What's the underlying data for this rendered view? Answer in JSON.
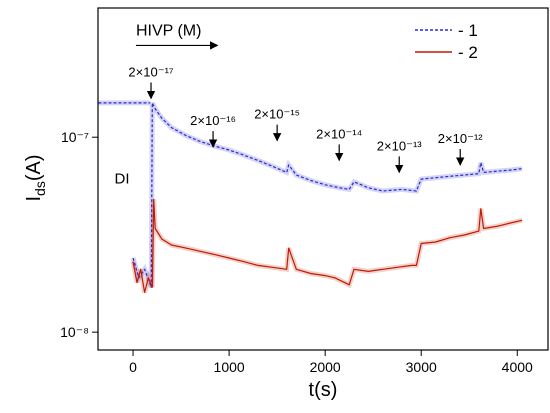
{
  "chart_data": {
    "type": "line",
    "xlabel": "t(s)",
    "ylabel": {
      "main": "I",
      "sub": "ds",
      "unit": "(A)"
    },
    "xlim": [
      -365,
      4320
    ],
    "ylim": [
      8.1e-09,
      4.6e-07
    ],
    "log_y": true,
    "xticks": [
      0,
      1000,
      2000,
      3000,
      4000
    ],
    "yticks": [
      {
        "value": 1e-08,
        "label": "10⁻⁸"
      },
      {
        "value": 1e-07,
        "label": "10⁻⁷"
      }
    ],
    "legend": "upper right",
    "series": [
      {
        "name": "- 1",
        "color": "#2a2ad0",
        "dash": true,
        "x": [
          -360,
          180,
          185,
          0,
          60,
          120,
          190,
          200,
          230,
          300,
          400,
          550,
          700,
          850,
          1000,
          1150,
          1300,
          1450,
          1600,
          1620,
          1700,
          1850,
          2000,
          2150,
          2250,
          2300,
          2450,
          2600,
          2800,
          2950,
          3000,
          3150,
          3300,
          3450,
          3600,
          3620,
          3650,
          3800,
          3950,
          4050
        ],
        "values": [
          1.5e-07,
          1.5e-07,
          null,
          2.4e-08,
          1.9e-08,
          2.1e-08,
          1.7e-08,
          1.5e-07,
          1.4e-07,
          1.25e-07,
          1.12e-07,
          1.02e-07,
          9.5e-08,
          9e-08,
          8.6e-08,
          8.1e-08,
          7.6e-08,
          7.1e-08,
          6.6e-08,
          7.2e-08,
          6.4e-08,
          6e-08,
          5.7e-08,
          5.5e-08,
          5.4e-08,
          5.9e-08,
          5.5e-08,
          5.3e-08,
          5.4e-08,
          5.3e-08,
          6.1e-08,
          6.2e-08,
          6.3e-08,
          6.4e-08,
          6.5e-08,
          7.4e-08,
          6.6e-08,
          6.7e-08,
          6.8e-08,
          6.9e-08
        ]
      },
      {
        "name": "- 2",
        "color": "#c01a00",
        "dash": false,
        "x": [
          0,
          40,
          80,
          120,
          160,
          200,
          215,
          230,
          300,
          400,
          550,
          700,
          850,
          1000,
          1150,
          1300,
          1450,
          1600,
          1620,
          1700,
          1850,
          2000,
          2100,
          2200,
          2250,
          2300,
          2450,
          2600,
          2750,
          2900,
          2950,
          3000,
          3150,
          3300,
          3450,
          3600,
          3620,
          3650,
          3800,
          3950,
          4050
        ],
        "values": [
          2.3e-08,
          1.8e-08,
          2.1e-08,
          1.6e-08,
          1.9e-08,
          1.7e-08,
          4.8e-08,
          3.4e-08,
          3e-08,
          2.8e-08,
          2.7e-08,
          2.6e-08,
          2.5e-08,
          2.4e-08,
          2.3e-08,
          2.2e-08,
          2.15e-08,
          2.1e-08,
          2.7e-08,
          2.1e-08,
          2e-08,
          1.95e-08,
          1.9e-08,
          1.8e-08,
          1.75e-08,
          2.1e-08,
          2.05e-08,
          2.1e-08,
          2.15e-08,
          2.2e-08,
          2.2e-08,
          2.85e-08,
          2.9e-08,
          3.05e-08,
          3.15e-08,
          3.3e-08,
          4.3e-08,
          3.4e-08,
          3.5e-08,
          3.65e-08,
          3.75e-08
        ]
      }
    ],
    "annotations": [
      {
        "text": "HIVP (M)",
        "x": 30,
        "y": 3.1e-07,
        "x2": 880
      },
      {
        "text": "2×10⁻¹⁷",
        "x": 187,
        "y": 1.58e-07
      },
      {
        "text": "2×10⁻¹⁶",
        "x": 833,
        "y": 8.9e-08
      },
      {
        "text": "2×10⁻¹⁵",
        "x": 1500,
        "y": 9.6e-08
      },
      {
        "text": "2×10⁻¹⁴",
        "x": 2146,
        "y": 7.6e-08
      },
      {
        "text": "2×10⁻¹³",
        "x": 2771,
        "y": 6.6e-08
      },
      {
        "text": "2×10⁻¹²",
        "x": 3406,
        "y": 7.2e-08
      },
      {
        "text": "DI",
        "x": -115,
        "y": 5.8e-08
      }
    ]
  }
}
